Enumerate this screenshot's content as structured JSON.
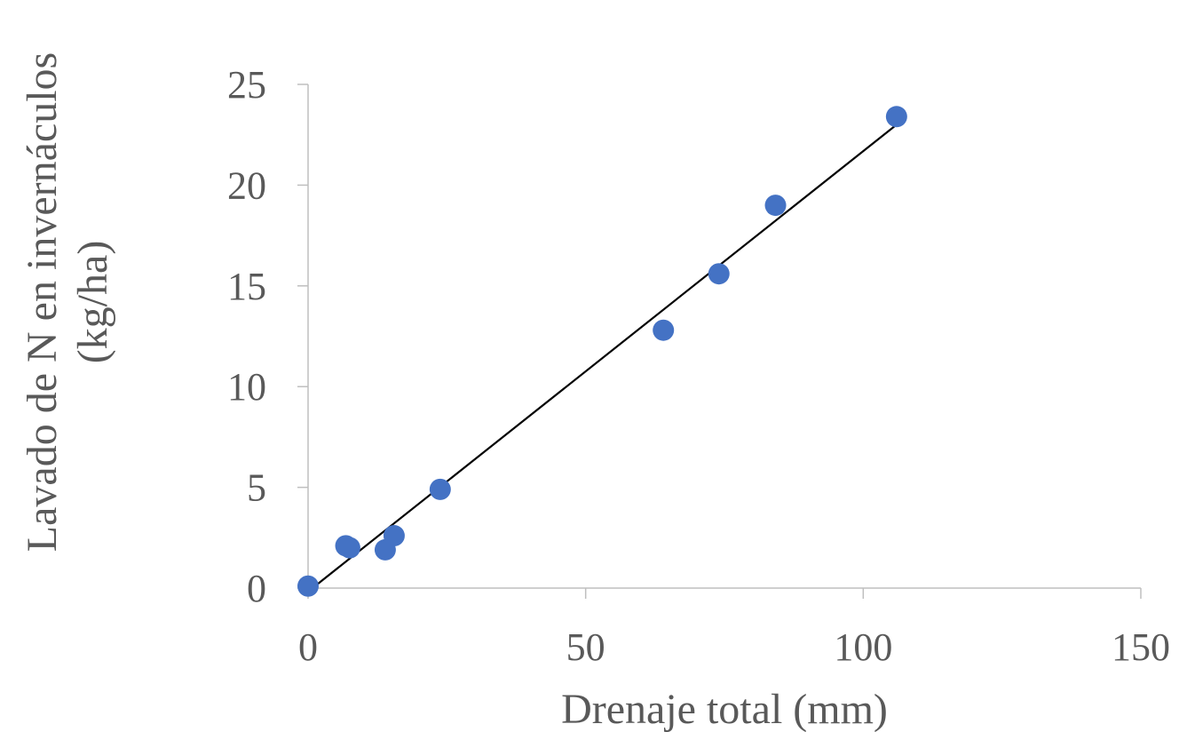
{
  "chart_data": {
    "type": "scatter",
    "title": "",
    "xlabel": "Drenaje total (mm)",
    "ylabel_lines": [
      "Lavado de N en invernáculos",
      "(kg/ha)"
    ],
    "xlim": [
      0,
      150
    ],
    "ylim": [
      0,
      25
    ],
    "x_ticks": [
      0,
      50,
      100,
      150
    ],
    "y_ticks": [
      0,
      5,
      10,
      15,
      20,
      25
    ],
    "x_tick_labels": [
      "0",
      "50",
      "100",
      "150"
    ],
    "y_tick_labels": [
      "0",
      "5",
      "10",
      "15",
      "20",
      "25"
    ],
    "grid": false,
    "legend": "none",
    "point_color": "#4472c4",
    "trendline_color": "#000000",
    "series": [
      {
        "points": [
          {
            "x": 0,
            "y": 0.1
          },
          {
            "x": 6.8,
            "y": 2.1
          },
          {
            "x": 7.5,
            "y": 2.0
          },
          {
            "x": 13.9,
            "y": 1.9
          },
          {
            "x": 15.5,
            "y": 2.6
          },
          {
            "x": 23.8,
            "y": 4.9
          },
          {
            "x": 64.0,
            "y": 12.8
          },
          {
            "x": 74.0,
            "y": 15.6
          },
          {
            "x": 84.2,
            "y": 19.0
          },
          {
            "x": 106.0,
            "y": 23.4
          }
        ]
      }
    ],
    "trendline": {
      "x": [
        0.8,
        106.0
      ],
      "y": [
        0.0,
        23.0
      ]
    }
  }
}
